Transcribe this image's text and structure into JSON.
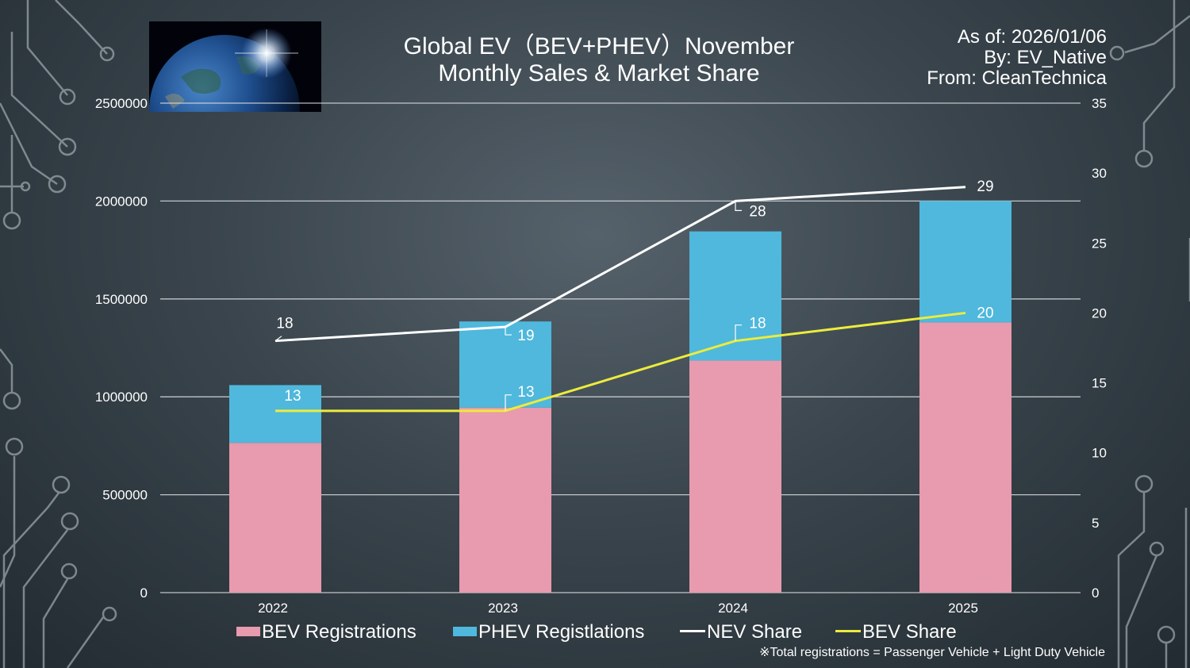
{
  "chart_data": {
    "type": "bar",
    "title": "Global EV（BEV+PHEV）November Monthly Sales & Market Share",
    "title_lines": [
      "Global EV（BEV+PHEV）November",
      "Monthly Sales & Market Share"
    ],
    "categories": [
      "2022",
      "2023",
      "2024",
      "2025"
    ],
    "stacked": true,
    "series": [
      {
        "name": "BEV Registrations",
        "axis": "left",
        "kind": "bar",
        "color": "#e89aae",
        "values": [
          765000,
          945000,
          1185000,
          1380000
        ]
      },
      {
        "name": "PHEV Registlations",
        "axis": "left",
        "kind": "bar",
        "color": "#4fb8dc",
        "values": [
          295000,
          440000,
          660000,
          620000
        ]
      },
      {
        "name": "NEV Share",
        "axis": "right",
        "kind": "line",
        "color": "#ffffff",
        "values": [
          18,
          19,
          28,
          29
        ]
      },
      {
        "name": "BEV Share",
        "axis": "right",
        "kind": "line",
        "color": "#ecec3c",
        "values": [
          13,
          13,
          18,
          20
        ]
      }
    ],
    "ylim_left": [
      0,
      2500000
    ],
    "yticks_left": [
      "0",
      "500000",
      "1000000",
      "1500000",
      "2000000",
      "2500000"
    ],
    "ylim_right": [
      0,
      35
    ],
    "yticks_right": [
      "0",
      "5",
      "10",
      "15",
      "20",
      "25",
      "30",
      "35"
    ],
    "grid": true,
    "legend_position": "bottom"
  },
  "meta": {
    "as_of": "As of: 2026/01/06",
    "by": "By: EV_Native",
    "from": "From: CleanTechnica"
  },
  "legend": {
    "bev": "BEV Registrations",
    "phev": "PHEV Registlations",
    "nev_share": "NEV Share",
    "bev_share": "BEV Share"
  },
  "footnote": "※Total registrations = Passenger Vehicle + Light Duty Vehicle",
  "colors": {
    "bev": "#e89aae",
    "phev": "#4fb8dc",
    "nev_line": "#ffffff",
    "bev_line": "#ecec3c",
    "grid": "#d9dde0",
    "circuit": "#b9c2c8"
  }
}
